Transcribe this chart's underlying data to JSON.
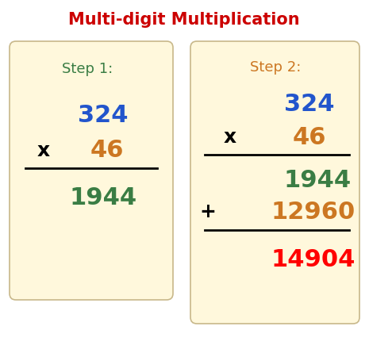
{
  "title": "Multi-digit Multiplication",
  "title_color": "#cc0000",
  "title_fontsize": 15,
  "bg_color": "#ffffff",
  "box_color": "#fff8dc",
  "box_edge_color": "#c8b88a",
  "step1_label": "Step 1:",
  "step1_label_color": "#3a7d44",
  "step2_label": "Step 2:",
  "step2_label_color": "#cc7722",
  "num1": "324",
  "num1_color": "#2255cc",
  "num2": "46",
  "num2_color": "#cc7722",
  "x_symbol": "x",
  "x_color": "#000000",
  "partial1": "1944",
  "partial1_color": "#3a7d44",
  "partial2": "12960",
  "partial2_color": "#cc7722",
  "plus_symbol": "+",
  "plus_color": "#000000",
  "final": "14904",
  "final_color": "#ff0000",
  "line_color": "#000000",
  "step_label_fontsize": 13,
  "number_fontsize": 22,
  "symbol_fontsize": 18
}
